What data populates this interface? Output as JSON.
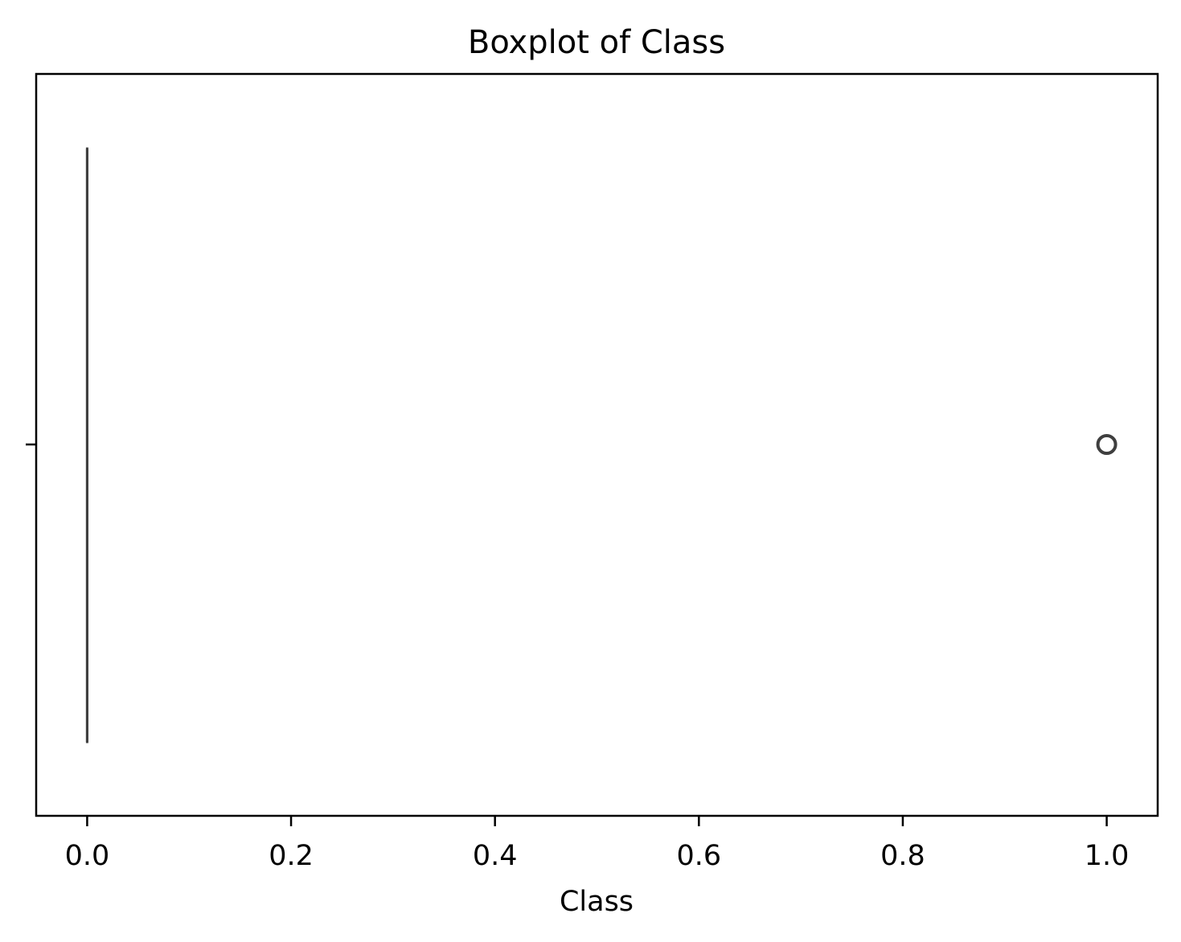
{
  "chart_data": {
    "type": "boxplot",
    "title": "Boxplot of Class",
    "xlabel": "Class",
    "ylabel": "",
    "orientation": "horizontal",
    "xlim": [
      -0.05,
      1.05
    ],
    "x_ticks": [
      0.0,
      0.2,
      0.4,
      0.6,
      0.8,
      1.0
    ],
    "x_tick_labels": [
      "0.0",
      "0.2",
      "0.4",
      "0.6",
      "0.8",
      "1.0"
    ],
    "grid": false,
    "legend": "none",
    "boxes": [
      {
        "min": 0.0,
        "q1": 0.0,
        "median": 0.0,
        "q3": 0.0,
        "max": 0.0,
        "outliers": [
          1.0
        ]
      }
    ],
    "colors": {
      "box_line": "#3f3f3f",
      "axes": "#000000",
      "background": "#ffffff"
    }
  }
}
